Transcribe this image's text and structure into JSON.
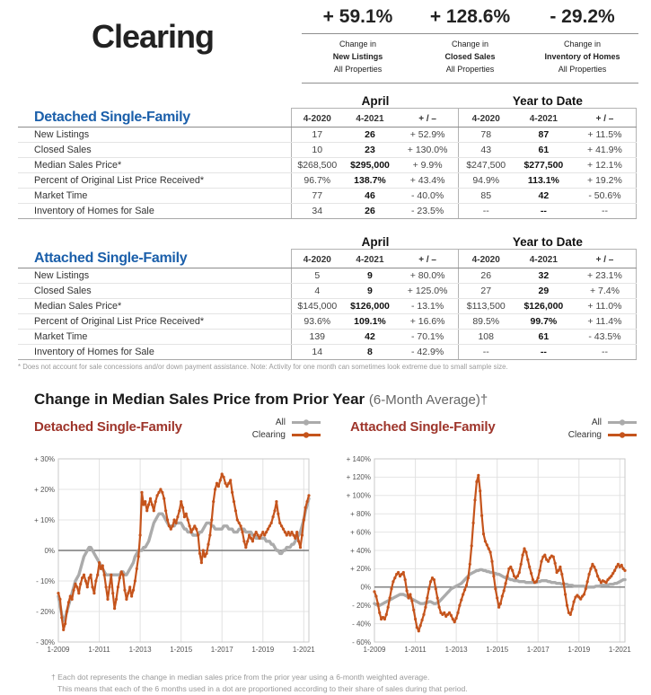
{
  "header": {
    "title": "Clearing",
    "stats": [
      {
        "value": "+ 59.1%",
        "line1": "Change in",
        "line2": "New Listings",
        "line3": "All Properties"
      },
      {
        "value": "+ 128.6%",
        "line1": "Change in",
        "line2": "Closed Sales",
        "line3": "All Properties"
      },
      {
        "value": "- 29.2%",
        "line1": "Change in",
        "line2": "Inventory of Homes",
        "line3": "All Properties"
      }
    ]
  },
  "tables": [
    {
      "title": "Detached Single-Family",
      "group_headers": {
        "april": "April",
        "ytd": "Year to Date"
      },
      "col_headers": [
        "4-2020",
        "4-2021",
        "+ / –",
        "4-2020",
        "4-2021",
        "+ / –"
      ],
      "rows": [
        {
          "label": "New Listings",
          "values": [
            "17",
            "26",
            "+ 52.9%",
            "78",
            "87",
            "+ 11.5%"
          ]
        },
        {
          "label": "Closed Sales",
          "values": [
            "10",
            "23",
            "+ 130.0%",
            "43",
            "61",
            "+ 41.9%"
          ]
        },
        {
          "label": "Median Sales Price*",
          "values": [
            "$268,500",
            "$295,000",
            "+ 9.9%",
            "$247,500",
            "$277,500",
            "+ 12.1%"
          ]
        },
        {
          "label": "Percent of Original List Price Received*",
          "values": [
            "96.7%",
            "138.7%",
            "+ 43.4%",
            "94.9%",
            "113.1%",
            "+ 19.2%"
          ]
        },
        {
          "label": "Market Time",
          "values": [
            "77",
            "46",
            "- 40.0%",
            "85",
            "42",
            "- 50.6%"
          ]
        },
        {
          "label": "Inventory of Homes for Sale",
          "values": [
            "34",
            "26",
            "- 23.5%",
            "--",
            "--",
            "--"
          ]
        }
      ]
    },
    {
      "title": "Attached Single-Family",
      "group_headers": {
        "april": "April",
        "ytd": "Year to Date"
      },
      "col_headers": [
        "4-2020",
        "4-2021",
        "+ / –",
        "4-2020",
        "4-2021",
        "+ / –"
      ],
      "rows": [
        {
          "label": "New Listings",
          "values": [
            "5",
            "9",
            "+ 80.0%",
            "26",
            "32",
            "+ 23.1%"
          ]
        },
        {
          "label": "Closed Sales",
          "values": [
            "4",
            "9",
            "+ 125.0%",
            "27",
            "29",
            "+ 7.4%"
          ]
        },
        {
          "label": "Median Sales Price*",
          "values": [
            "$145,000",
            "$126,000",
            "- 13.1%",
            "$113,500",
            "$126,000",
            "+ 11.0%"
          ]
        },
        {
          "label": "Percent of Original List Price Received*",
          "values": [
            "93.6%",
            "109.1%",
            "+ 16.6%",
            "89.5%",
            "99.7%",
            "+ 11.4%"
          ]
        },
        {
          "label": "Market Time",
          "values": [
            "139",
            "42",
            "- 70.1%",
            "108",
            "61",
            "- 43.5%"
          ]
        },
        {
          "label": "Inventory of Homes for Sale",
          "values": [
            "14",
            "8",
            "- 42.9%",
            "--",
            "--",
            "--"
          ]
        }
      ]
    }
  ],
  "table_footnote": "* Does not account for sale concessions and/or down payment assistance. Note: Activity for one month can sometimes look extreme due to small sample size.",
  "charts_section": {
    "title": "Change in Median Sales Price from Prior Year",
    "subtitle": "(6-Month Average)†",
    "legend": [
      "All",
      "Clearing"
    ],
    "footnote_line1": "† Each dot represents the change in median sales price from the prior year using a 6-month weighted average.",
    "footnote_line2": "This means that each of the 6 months used in a dot are proportioned according to their share of sales during that period."
  },
  "colors": {
    "accent_blue": "#1B5FAA",
    "accent_red": "#9E352B",
    "line_orange": "#C5541C",
    "line_gray": "#ABABAB"
  },
  "chart_data": [
    {
      "type": "line",
      "title": "Detached Single-Family",
      "x_unit": "month",
      "x_range": "1-2009 to 4-2021",
      "x_tick_labels": [
        "1-2009",
        "1-2011",
        "1-2013",
        "1-2015",
        "1-2017",
        "1-2019",
        "1-2021"
      ],
      "x_tick_every": 24,
      "ylim": [
        -30,
        30
      ],
      "ytick_step": 10,
      "ytick_labels": [
        "+ 30%",
        "+ 20%",
        "+ 10%",
        "0%",
        "- 10%",
        "- 20%",
        "- 30%"
      ],
      "grid": true,
      "legend_position": "top-right",
      "series": [
        {
          "name": "All",
          "color": "#ABABAB",
          "values": [
            -15,
            -18,
            -21,
            -23,
            -22,
            -20,
            -18,
            -16,
            -14,
            -12,
            -10,
            -9,
            -8,
            -6,
            -4,
            -2,
            -1,
            0,
            1,
            1,
            0,
            -1,
            -2,
            -3,
            -4,
            -5,
            -6,
            -7,
            -8,
            -8,
            -8,
            -8,
            -8,
            -8,
            -8,
            -8,
            -8,
            -7,
            -7,
            -8,
            -8,
            -7,
            -6,
            -5,
            -4,
            -2,
            -1,
            0,
            0,
            0,
            1,
            1,
            2,
            3,
            5,
            7,
            9,
            10,
            11,
            12,
            12,
            12,
            11,
            10,
            9,
            8,
            8,
            8,
            8,
            9,
            9,
            9,
            9,
            8,
            7,
            7,
            6,
            6,
            6,
            5,
            5,
            5,
            5,
            6,
            6,
            7,
            8,
            9,
            9,
            9,
            8,
            8,
            7,
            7,
            7,
            7,
            7,
            8,
            8,
            8,
            7,
            7,
            7,
            6,
            6,
            6,
            7,
            7,
            7,
            7,
            6,
            6,
            6,
            6,
            5,
            5,
            4,
            4,
            4,
            4,
            4,
            4,
            3,
            3,
            3,
            2,
            2,
            1,
            0,
            0,
            -1,
            -1,
            0,
            0,
            1,
            1,
            1,
            2,
            2,
            3,
            4,
            5,
            6,
            8,
            10,
            13,
            15,
            17
          ]
        },
        {
          "name": "Clearing",
          "color": "#C5541C",
          "values": [
            -14,
            -16,
            -22,
            -26,
            -24,
            -20,
            -17,
            -15,
            -16,
            -13,
            -11,
            -12,
            -14,
            -11,
            -9,
            -8,
            -10,
            -12,
            -9,
            -8,
            -12,
            -14,
            -10,
            -8,
            -4,
            -6,
            -5,
            -8,
            -12,
            -16,
            -12,
            -8,
            -14,
            -19,
            -16,
            -12,
            -9,
            -7,
            -8,
            -13,
            -16,
            -14,
            -12,
            -15,
            -13,
            -10,
            -6,
            -2,
            5,
            19,
            15,
            16,
            13,
            15,
            17,
            15,
            13,
            16,
            18,
            19,
            20,
            19,
            17,
            13,
            10,
            8,
            7,
            8,
            10,
            9,
            11,
            13,
            16,
            14,
            11,
            12,
            10,
            8,
            6,
            7,
            8,
            7,
            5,
            -1,
            -4,
            0,
            -2,
            -1,
            2,
            5,
            10,
            16,
            20,
            22,
            21,
            23,
            25,
            24,
            22,
            21,
            22,
            23,
            19,
            16,
            13,
            10,
            9,
            8,
            6,
            3,
            1,
            3,
            5,
            4,
            3,
            5,
            6,
            5,
            4,
            5,
            6,
            5,
            6,
            7,
            8,
            9,
            11,
            13,
            16,
            12,
            9,
            8,
            7,
            6,
            5,
            6,
            5,
            6,
            5,
            4,
            6,
            3,
            1,
            5,
            10,
            14,
            16,
            18
          ]
        }
      ]
    },
    {
      "type": "line",
      "title": "Attached Single-Family",
      "x_unit": "month",
      "x_range": "1-2009 to 4-2021",
      "x_tick_labels": [
        "1-2009",
        "1-2011",
        "1-2013",
        "1-2015",
        "1-2017",
        "1-2019",
        "1-2021"
      ],
      "x_tick_every": 24,
      "ylim": [
        -60,
        140
      ],
      "ytick_step": 20,
      "ytick_labels": [
        "+ 140%",
        "+ 120%",
        "+ 100%",
        "+ 80%",
        "+ 60%",
        "+ 40%",
        "+ 20%",
        "0%",
        "- 20%",
        "- 40%",
        "- 60%"
      ],
      "grid": true,
      "legend_position": "top-right",
      "series": [
        {
          "name": "All",
          "color": "#ABABAB",
          "values": [
            -18,
            -19,
            -20,
            -20,
            -19,
            -18,
            -17,
            -16,
            -15,
            -14,
            -13,
            -12,
            -11,
            -10,
            -9,
            -8,
            -8,
            -8,
            -9,
            -10,
            -11,
            -12,
            -13,
            -14,
            -15,
            -16,
            -17,
            -18,
            -18,
            -18,
            -17,
            -17,
            -16,
            -16,
            -17,
            -18,
            -18,
            -17,
            -16,
            -14,
            -12,
            -10,
            -8,
            -6,
            -4,
            -2,
            -1,
            0,
            1,
            2,
            3,
            4,
            6,
            8,
            10,
            12,
            14,
            15,
            16,
            17,
            18,
            18,
            19,
            19,
            18,
            18,
            17,
            17,
            16,
            16,
            15,
            15,
            14,
            14,
            13,
            12,
            11,
            10,
            10,
            9,
            8,
            8,
            7,
            7,
            7,
            6,
            6,
            6,
            6,
            5,
            5,
            5,
            5,
            5,
            5,
            5,
            6,
            6,
            7,
            7,
            7,
            7,
            6,
            6,
            5,
            5,
            5,
            4,
            4,
            4,
            3,
            3,
            3,
            3,
            2,
            2,
            2,
            1,
            1,
            1,
            1,
            1,
            1,
            1,
            0,
            0,
            0,
            0,
            0,
            0,
            1,
            1,
            1,
            2,
            2,
            2,
            2,
            2,
            3,
            3,
            3,
            4,
            4,
            5,
            6,
            7,
            8,
            8
          ]
        },
        {
          "name": "Clearing",
          "color": "#C5541C",
          "values": [
            -5,
            -10,
            -18,
            -28,
            -35,
            -33,
            -35,
            -30,
            -22,
            -12,
            -2,
            6,
            10,
            14,
            16,
            12,
            14,
            16,
            8,
            -4,
            -12,
            -8,
            -15,
            -25,
            -35,
            -44,
            -48,
            -42,
            -36,
            -30,
            -22,
            -12,
            -2,
            6,
            10,
            8,
            -2,
            -12,
            -22,
            -28,
            -30,
            -28,
            -32,
            -30,
            -28,
            -31,
            -35,
            -38,
            -34,
            -28,
            -20,
            -14,
            -8,
            -3,
            2,
            10,
            25,
            45,
            70,
            95,
            115,
            122,
            105,
            78,
            58,
            50,
            46,
            42,
            38,
            28,
            12,
            -2,
            -12,
            -22,
            -18,
            -10,
            -4,
            4,
            12,
            20,
            22,
            18,
            12,
            10,
            12,
            16,
            25,
            35,
            42,
            38,
            30,
            22,
            15,
            8,
            5,
            6,
            10,
            18,
            28,
            33,
            35,
            30,
            28,
            32,
            34,
            33,
            26,
            16,
            18,
            22,
            14,
            4,
            -8,
            -20,
            -28,
            -30,
            -24,
            -16,
            -11,
            -9,
            -11,
            -13,
            -10,
            -8,
            -2,
            6,
            14,
            20,
            25,
            22,
            18,
            12,
            8,
            5,
            7,
            6,
            5,
            8,
            10,
            12,
            15,
            18,
            22,
            25,
            22,
            24,
            20,
            18
          ]
        }
      ]
    }
  ]
}
